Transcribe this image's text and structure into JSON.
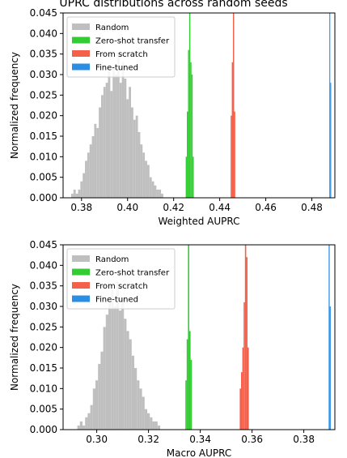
{
  "title": "UPRC distributions across random seeds",
  "colors": {
    "random": "#bfbfbf",
    "zero_shot": "#33cc33",
    "scratch": "#f5604a",
    "finetuned": "#2a8ee6"
  },
  "chart_data": [
    {
      "type": "bar",
      "xlabel": "Weighted AUPRC",
      "ylabel": "Normalized frequency",
      "xlim": [
        0.372,
        0.49
      ],
      "ylim": [
        0,
        0.045
      ],
      "xticks": [
        0.38,
        0.4,
        0.42,
        0.44,
        0.46,
        0.48
      ],
      "xtick_labels": [
        "0.38",
        "0.40",
        "0.42",
        "0.44",
        "0.46",
        "0.48"
      ],
      "yticks": [
        0,
        0.005,
        0.01,
        0.015,
        0.02,
        0.025,
        0.03,
        0.035,
        0.04,
        0.045
      ],
      "ytick_labels": [
        "0.000",
        "0.005",
        "0.010",
        "0.015",
        "0.020",
        "0.025",
        "0.030",
        "0.035",
        "0.040",
        "0.045"
      ],
      "legend_position": "top-left",
      "legend": [
        "Random",
        "Zero-shot transfer",
        "From scratch",
        "Fine-tuned"
      ],
      "series": [
        {
          "name": "Random",
          "color": "#bfbfbf",
          "bin_width": 0.001,
          "x": [
            0.376,
            0.377,
            0.378,
            0.379,
            0.38,
            0.381,
            0.382,
            0.383,
            0.384,
            0.385,
            0.386,
            0.387,
            0.388,
            0.389,
            0.39,
            0.391,
            0.392,
            0.393,
            0.394,
            0.395,
            0.396,
            0.397,
            0.398,
            0.399,
            0.4,
            0.401,
            0.402,
            0.403,
            0.404,
            0.405,
            0.406,
            0.407,
            0.408,
            0.409,
            0.41,
            0.411,
            0.412,
            0.413,
            0.414,
            0.415
          ],
          "values": [
            0.001,
            0.002,
            0.001,
            0.002,
            0.004,
            0.006,
            0.009,
            0.011,
            0.013,
            0.015,
            0.018,
            0.017,
            0.022,
            0.025,
            0.027,
            0.028,
            0.031,
            0.026,
            0.032,
            0.03,
            0.035,
            0.028,
            0.033,
            0.029,
            0.024,
            0.027,
            0.022,
            0.019,
            0.02,
            0.016,
            0.013,
            0.011,
            0.009,
            0.008,
            0.005,
            0.004,
            0.003,
            0.002,
            0.002,
            0.001
          ]
        },
        {
          "name": "Zero-shot transfer",
          "color": "#33cc33",
          "bin_width": 0.0005,
          "x": [
            0.4255,
            0.426,
            0.4265,
            0.427,
            0.4275,
            0.428,
            0.4285
          ],
          "values": [
            0.01,
            0.021,
            0.036,
            0.046,
            0.033,
            0.03,
            0.01
          ]
        },
        {
          "name": "From scratch",
          "color": "#f5604a",
          "bin_width": 0.0005,
          "x": [
            0.445,
            0.4455,
            0.446,
            0.4465
          ],
          "values": [
            0.02,
            0.033,
            0.046,
            0.021
          ]
        },
        {
          "name": "Fine-tuned",
          "color": "#2a8ee6",
          "bin_width": 0.0004,
          "x": [
            0.4878,
            0.4882
          ],
          "values": [
            0.046,
            0.028
          ]
        }
      ]
    },
    {
      "type": "bar",
      "xlabel": "Macro AUPRC",
      "ylabel": "Normalized frequency",
      "xlim": [
        0.287,
        0.392
      ],
      "ylim": [
        0,
        0.045
      ],
      "xticks": [
        0.3,
        0.32,
        0.34,
        0.36,
        0.38
      ],
      "xtick_labels": [
        "0.30",
        "0.32",
        "0.34",
        "0.36",
        "0.38"
      ],
      "yticks": [
        0,
        0.005,
        0.01,
        0.015,
        0.02,
        0.025,
        0.03,
        0.035,
        0.04,
        0.045
      ],
      "ytick_labels": [
        "0.000",
        "0.005",
        "0.010",
        "0.015",
        "0.020",
        "0.025",
        "0.030",
        "0.035",
        "0.040",
        "0.045"
      ],
      "legend_position": "top-left",
      "legend": [
        "Random",
        "Zero-shot transfer",
        "From scratch",
        "Fine-tuned"
      ],
      "series": [
        {
          "name": "Random",
          "color": "#bfbfbf",
          "bin_width": 0.001,
          "x": [
            0.293,
            0.294,
            0.295,
            0.296,
            0.297,
            0.298,
            0.299,
            0.3,
            0.301,
            0.302,
            0.303,
            0.304,
            0.305,
            0.306,
            0.307,
            0.308,
            0.309,
            0.31,
            0.311,
            0.312,
            0.313,
            0.314,
            0.315,
            0.316,
            0.317,
            0.318,
            0.319,
            0.32,
            0.321,
            0.322,
            0.323,
            0.324
          ],
          "values": [
            0.001,
            0.002,
            0.001,
            0.003,
            0.004,
            0.006,
            0.01,
            0.012,
            0.016,
            0.019,
            0.025,
            0.028,
            0.031,
            0.034,
            0.03,
            0.036,
            0.029,
            0.032,
            0.027,
            0.024,
            0.022,
            0.018,
            0.015,
            0.012,
            0.01,
            0.008,
            0.005,
            0.004,
            0.003,
            0.002,
            0.002,
            0.001
          ]
        },
        {
          "name": "Zero-shot transfer",
          "color": "#33cc33",
          "bin_width": 0.0005,
          "x": [
            0.3345,
            0.335,
            0.3355,
            0.336,
            0.3365
          ],
          "values": [
            0.012,
            0.022,
            0.046,
            0.024,
            0.017
          ]
        },
        {
          "name": "From scratch",
          "color": "#f5604a",
          "bin_width": 0.0005,
          "x": [
            0.3555,
            0.356,
            0.3565,
            0.357,
            0.3575,
            0.358,
            0.3585
          ],
          "values": [
            0.01,
            0.014,
            0.02,
            0.031,
            0.046,
            0.042,
            0.02
          ]
        },
        {
          "name": "Fine-tuned",
          "color": "#2a8ee6",
          "bin_width": 0.0004,
          "x": [
            0.3898,
            0.3902
          ],
          "values": [
            0.046,
            0.03
          ]
        }
      ]
    }
  ]
}
